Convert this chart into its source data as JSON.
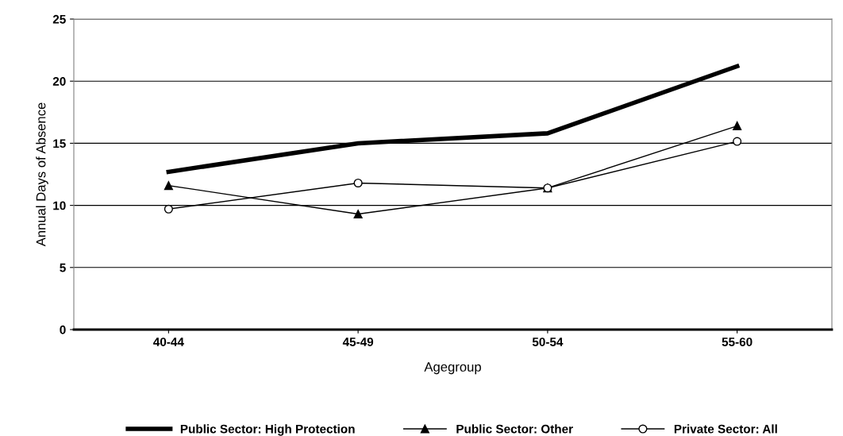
{
  "chart_data": {
    "type": "line",
    "xlabel": "Agegroup",
    "ylabel": "Annual Days of Absence",
    "categories": [
      "40-44",
      "45-49",
      "50-54",
      "55-60"
    ],
    "series": [
      {
        "name": "Public Sector: High Protection",
        "color": "#000000",
        "values": [
          12.7,
          15.0,
          15.8,
          21.2
        ],
        "marker": "none"
      },
      {
        "name": "Public Sector: Other",
        "color": "#000000",
        "values": [
          11.6,
          9.3,
          11.4,
          16.4
        ],
        "marker": "triangle"
      },
      {
        "name": "Private Sector: All",
        "color": "#000000",
        "values": [
          9.7,
          11.8,
          11.4,
          15.15
        ],
        "marker": "circle"
      }
    ],
    "ylim": [
      0,
      25
    ],
    "yticks": [
      0,
      5,
      10,
      15,
      20,
      25
    ],
    "grid": "y",
    "legend": "bottom"
  }
}
